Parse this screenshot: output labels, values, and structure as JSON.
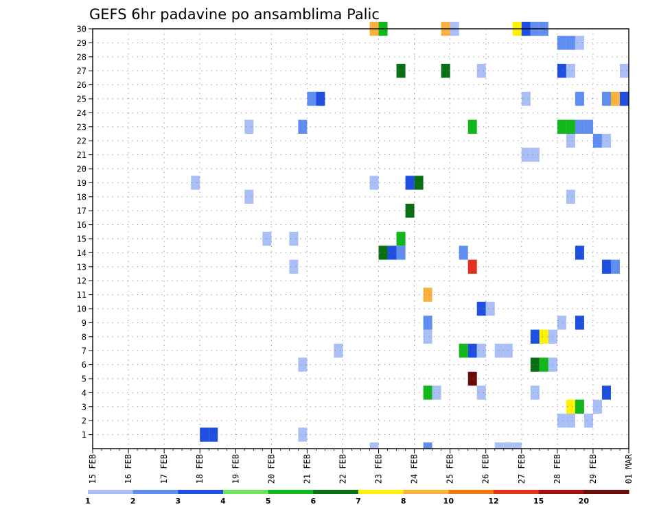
{
  "chart_data": {
    "type": "heatmap",
    "title": "GEFS 6hr padavine po ansamblima Palic",
    "xlabel": "",
    "ylabel": "",
    "x_ticks": [
      "15 FEB",
      "16 FEB",
      "17 FEB",
      "18 FEB",
      "19 FEB",
      "20 FEB",
      "21 FEB",
      "22 FEB",
      "23 FEB",
      "24 FEB",
      "25 FEB",
      "26 FEB",
      "27 FEB",
      "28 FEB",
      "29 FEB",
      "01 MAR"
    ],
    "y_ticks": [
      "1",
      "2",
      "3",
      "4",
      "5",
      "6",
      "7",
      "8",
      "9",
      "10",
      "11",
      "12",
      "13",
      "14",
      "15",
      "16",
      "17",
      "18",
      "19",
      "20",
      "21",
      "22",
      "23",
      "24",
      "25",
      "26",
      "27",
      "28",
      "29",
      "30"
    ],
    "xlim_days": [
      0,
      15
    ],
    "ylim": [
      0,
      30
    ],
    "step_hours": 6,
    "grid": true,
    "colorbar": {
      "position": "bottom",
      "ticks": [
        "1",
        "2",
        "3",
        "4",
        "5",
        "6",
        "7",
        "8",
        "10",
        "12",
        "15",
        "20"
      ],
      "colors": [
        "#aabff5",
        "#5f8ef0",
        "#1f4fe0",
        "#6ee35a",
        "#11b81c",
        "#0a6e12",
        "#fff200",
        "#f9b23e",
        "#f47b12",
        "#e2321c",
        "#a50f0f",
        "#6b0b0b"
      ]
    },
    "cells": [
      {
        "member": 1,
        "day": 3.0,
        "value": 3
      },
      {
        "member": 1,
        "day": 3.25,
        "value": 3
      },
      {
        "member": 1,
        "day": 5.75,
        "value": 1
      },
      {
        "member": 2,
        "day": 13.0,
        "value": 1
      },
      {
        "member": 2,
        "day": 13.25,
        "value": 1
      },
      {
        "member": 2,
        "day": 13.75,
        "value": 1
      },
      {
        "member": 3,
        "day": 13.25,
        "value": 7
      },
      {
        "member": 3,
        "day": 13.5,
        "value": 5
      },
      {
        "member": 3,
        "day": 14.0,
        "value": 1
      },
      {
        "member": 4,
        "day": 9.25,
        "value": 5
      },
      {
        "member": 4,
        "day": 9.5,
        "value": 1
      },
      {
        "member": 4,
        "day": 10.75,
        "value": 1
      },
      {
        "member": 4,
        "day": 12.25,
        "value": 1
      },
      {
        "member": 4,
        "day": 14.25,
        "value": 3
      },
      {
        "member": 5,
        "day": 10.5,
        "value": 20
      },
      {
        "member": 6,
        "day": 5.75,
        "value": 1
      },
      {
        "member": 6,
        "day": 12.25,
        "value": 6
      },
      {
        "member": 6,
        "day": 12.5,
        "value": 5
      },
      {
        "member": 6,
        "day": 12.75,
        "value": 1
      },
      {
        "member": 7,
        "day": 6.75,
        "value": 1
      },
      {
        "member": 7,
        "day": 10.25,
        "value": 5
      },
      {
        "member": 7,
        "day": 10.5,
        "value": 3
      },
      {
        "member": 7,
        "day": 10.75,
        "value": 1
      },
      {
        "member": 7,
        "day": 11.25,
        "value": 1
      },
      {
        "member": 7,
        "day": 11.5,
        "value": 1
      },
      {
        "member": 8,
        "day": 9.25,
        "value": 1
      },
      {
        "member": 8,
        "day": 12.25,
        "value": 3
      },
      {
        "member": 8,
        "day": 12.5,
        "value": 7
      },
      {
        "member": 8,
        "day": 12.75,
        "value": 1
      },
      {
        "member": 9,
        "day": 9.25,
        "value": 2
      },
      {
        "member": 9,
        "day": 13.0,
        "value": 1
      },
      {
        "member": 9,
        "day": 13.5,
        "value": 3
      },
      {
        "member": 10,
        "day": 10.75,
        "value": 3
      },
      {
        "member": 10,
        "day": 11.0,
        "value": 1
      },
      {
        "member": 11,
        "day": 9.25,
        "value": 8
      },
      {
        "member": 13,
        "day": 5.5,
        "value": 1
      },
      {
        "member": 13,
        "day": 10.5,
        "value": 12
      },
      {
        "member": 13,
        "day": 14.25,
        "value": 3
      },
      {
        "member": 13,
        "day": 14.5,
        "value": 2
      },
      {
        "member": 14,
        "day": 8.0,
        "value": 6
      },
      {
        "member": 14,
        "day": 8.25,
        "value": 3
      },
      {
        "member": 14,
        "day": 8.5,
        "value": 2
      },
      {
        "member": 14,
        "day": 10.25,
        "value": 2
      },
      {
        "member": 14,
        "day": 13.5,
        "value": 3
      },
      {
        "member": 15,
        "day": 4.75,
        "value": 1
      },
      {
        "member": 15,
        "day": 5.5,
        "value": 1
      },
      {
        "member": 15,
        "day": 8.5,
        "value": 5
      },
      {
        "member": 17,
        "day": 8.75,
        "value": 6
      },
      {
        "member": 18,
        "day": 4.25,
        "value": 1
      },
      {
        "member": 18,
        "day": 13.25,
        "value": 1
      },
      {
        "member": 19,
        "day": 7.75,
        "value": 1
      },
      {
        "member": 19,
        "day": 8.75,
        "value": 3
      },
      {
        "member": 19,
        "day": 9.0,
        "value": 6
      },
      {
        "member": 19,
        "day": 2.75,
        "value": 1
      },
      {
        "member": 21,
        "day": 12.0,
        "value": 1
      },
      {
        "member": 21,
        "day": 12.25,
        "value": 1
      },
      {
        "member": 22,
        "day": 13.25,
        "value": 1
      },
      {
        "member": 22,
        "day": 14.0,
        "value": 2
      },
      {
        "member": 22,
        "day": 14.25,
        "value": 1
      },
      {
        "member": 23,
        "day": 4.25,
        "value": 1
      },
      {
        "member": 23,
        "day": 5.75,
        "value": 2
      },
      {
        "member": 23,
        "day": 10.5,
        "value": 5
      },
      {
        "member": 23,
        "day": 13.0,
        "value": 5
      },
      {
        "member": 23,
        "day": 13.25,
        "value": 5
      },
      {
        "member": 23,
        "day": 13.5,
        "value": 2
      },
      {
        "member": 23,
        "day": 13.75,
        "value": 2
      },
      {
        "member": 25,
        "day": 6.0,
        "value": 2
      },
      {
        "member": 25,
        "day": 6.25,
        "value": 3
      },
      {
        "member": 25,
        "day": 12.0,
        "value": 1
      },
      {
        "member": 25,
        "day": 13.5,
        "value": 2
      },
      {
        "member": 25,
        "day": 14.25,
        "value": 2
      },
      {
        "member": 25,
        "day": 14.5,
        "value": 9
      },
      {
        "member": 25,
        "day": 14.75,
        "value": 3
      },
      {
        "member": 27,
        "day": 8.5,
        "value": 6
      },
      {
        "member": 27,
        "day": 9.75,
        "value": 6
      },
      {
        "member": 27,
        "day": 10.75,
        "value": 1
      },
      {
        "member": 27,
        "day": 13.0,
        "value": 3
      },
      {
        "member": 27,
        "day": 13.25,
        "value": 1
      },
      {
        "member": 27,
        "day": 14.75,
        "value": 1
      },
      {
        "member": 29,
        "day": 13.0,
        "value": 2
      },
      {
        "member": 29,
        "day": 13.25,
        "value": 2
      },
      {
        "member": 29,
        "day": 13.5,
        "value": 1
      },
      {
        "member": 30,
        "day": 7.75,
        "value": 9
      },
      {
        "member": 30,
        "day": 8.0,
        "value": 5
      },
      {
        "member": 30,
        "day": 9.75,
        "value": 9
      },
      {
        "member": 30,
        "day": 10.0,
        "value": 1
      },
      {
        "member": 30,
        "day": 11.75,
        "value": 7
      },
      {
        "member": 30,
        "day": 12.0,
        "value": 3
      },
      {
        "member": 30,
        "day": 12.25,
        "value": 2
      },
      {
        "member": 30,
        "day": 12.5,
        "value": 2
      },
      {
        "member": 0,
        "day": 7.75,
        "value": 1
      },
      {
        "member": 0,
        "day": 9.25,
        "value": 2
      },
      {
        "member": 0,
        "day": 11.25,
        "value": 1
      },
      {
        "member": 0,
        "day": 11.5,
        "value": 1
      },
      {
        "member": 0,
        "day": 11.75,
        "value": 1
      }
    ]
  }
}
